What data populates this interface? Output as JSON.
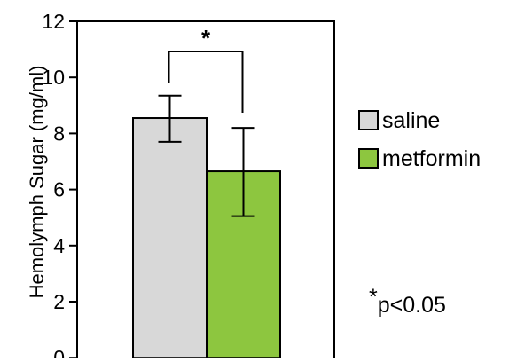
{
  "chart_data": {
    "type": "bar",
    "ylabel": "Hemolymph Sugar (mg/ml)",
    "ylim": [
      0,
      12
    ],
    "yticks": [
      0,
      2,
      4,
      6,
      8,
      10,
      12
    ],
    "series": [
      {
        "name": "saline",
        "value": 8.55,
        "error_low": 7.7,
        "error_high": 9.35,
        "color": "#d8d8d8"
      },
      {
        "name": "metformin",
        "value": 6.65,
        "error_low": 5.05,
        "error_high": 8.2,
        "color": "#8dc63f"
      }
    ],
    "significance": {
      "marker": "*",
      "between": [
        "saline",
        "metformin"
      ]
    },
    "note": {
      "marker": "*",
      "text": "p<0.05"
    },
    "legend_position": "right",
    "grid": false
  }
}
